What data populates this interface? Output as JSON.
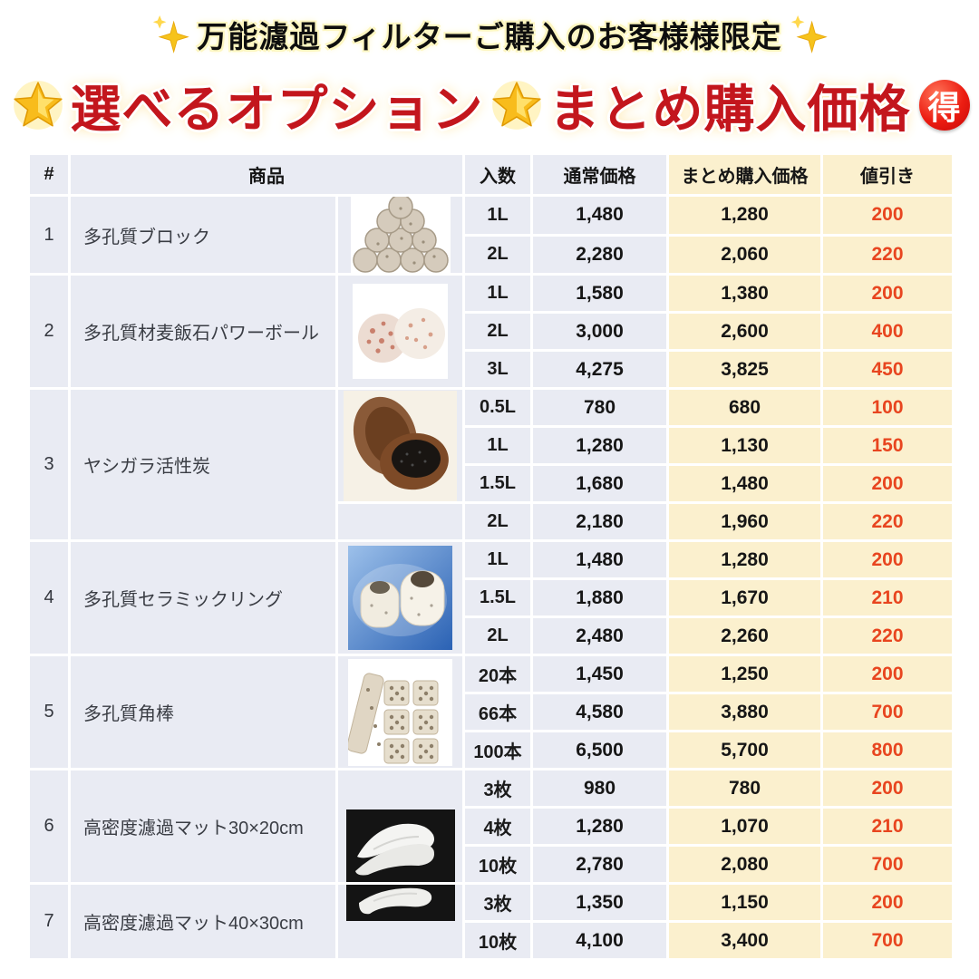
{
  "banner": {
    "subtitle": "万能濾過フィルターご購入のお客様様限定",
    "title_left": "選べるオプション",
    "title_right": "まとめ購入価格",
    "toku_badge": "得",
    "icons": {
      "sparkle": "✨",
      "glowing_star": "🌟",
      "toku_circle": "🉐"
    }
  },
  "table": {
    "columns": {
      "number": "#",
      "product": "商品",
      "quantity": "入数",
      "regular_price": "通常価格",
      "bulk_price": "まとめ購入価格",
      "discount": "値引き"
    },
    "products": [
      {
        "no": "1",
        "name": "多孔質ブロック",
        "image": "porous-blocks",
        "rows": [
          {
            "qty": "1L",
            "regular": "1,480",
            "bulk": "1,280",
            "discount": "200"
          },
          {
            "qty": "2L",
            "regular": "2,280",
            "bulk": "2,060",
            "discount": "220"
          }
        ]
      },
      {
        "no": "2",
        "name": "多孔質材麦飯石パワーボール",
        "image": "power-balls",
        "rows": [
          {
            "qty": "1L",
            "regular": "1,580",
            "bulk": "1,380",
            "discount": "200"
          },
          {
            "qty": "2L",
            "regular": "3,000",
            "bulk": "2,600",
            "discount": "400"
          },
          {
            "qty": "3L",
            "regular": "4,275",
            "bulk": "3,825",
            "discount": "450"
          }
        ]
      },
      {
        "no": "3",
        "name": "ヤシガラ活性炭",
        "image": "activated-carbon",
        "image_rows": 3,
        "rows": [
          {
            "qty": "0.5L",
            "regular": "780",
            "bulk": "680",
            "discount": "100"
          },
          {
            "qty": "1L",
            "regular": "1,280",
            "bulk": "1,130",
            "discount": "150"
          },
          {
            "qty": "1.5L",
            "regular": "1,680",
            "bulk": "1,480",
            "discount": "200"
          },
          {
            "qty": "2L",
            "regular": "2,180",
            "bulk": "1,960",
            "discount": "220"
          }
        ]
      },
      {
        "no": "4",
        "name": "多孔質セラミックリング",
        "image": "ceramic-rings",
        "rows": [
          {
            "qty": "1L",
            "regular": "1,480",
            "bulk": "1,280",
            "discount": "200"
          },
          {
            "qty": "1.5L",
            "regular": "1,880",
            "bulk": "1,670",
            "discount": "210"
          },
          {
            "qty": "2L",
            "regular": "2,480",
            "bulk": "2,260",
            "discount": "220"
          }
        ]
      },
      {
        "no": "5",
        "name": "多孔質角棒",
        "image": "square-rods",
        "rows": [
          {
            "qty": "20本",
            "regular": "1,450",
            "bulk": "1,250",
            "discount": "200"
          },
          {
            "qty": "66本",
            "regular": "4,580",
            "bulk": "3,880",
            "discount": "700"
          },
          {
            "qty": "100本",
            "regular": "6,500",
            "bulk": "5,700",
            "discount": "800"
          }
        ]
      },
      {
        "no": "6",
        "name": "高密度濾過マット30×20cm",
        "image": "filter-mat-upper",
        "image_align": "bottom",
        "rows": [
          {
            "qty": "3枚",
            "regular": "980",
            "bulk": "780",
            "discount": "200"
          },
          {
            "qty": "4枚",
            "regular": "1,280",
            "bulk": "1,070",
            "discount": "210"
          },
          {
            "qty": "10枚",
            "regular": "2,780",
            "bulk": "2,080",
            "discount": "700"
          }
        ]
      },
      {
        "no": "7",
        "name": "高密度濾過マット40×30cm",
        "image": "filter-mat-lower",
        "image_align": "top",
        "rows": [
          {
            "qty": "3枚",
            "regular": "1,350",
            "bulk": "1,150",
            "discount": "200"
          },
          {
            "qty": "10枚",
            "regular": "4,100",
            "bulk": "3,400",
            "discount": "700"
          }
        ]
      }
    ]
  },
  "colors": {
    "title_red": "#c3161d",
    "discount_orange": "#e8451f",
    "bulk_column_cream": "#fbf0ce",
    "cell_gray": "#e9ebf3",
    "banner_text_black": "#0e0e0e",
    "toku_badge_red": "#ec1d12"
  }
}
